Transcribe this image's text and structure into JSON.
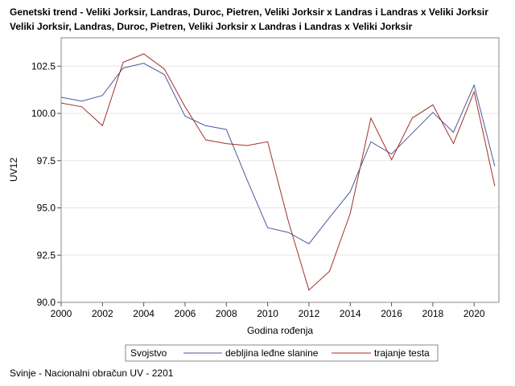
{
  "title_lines": [
    "Genetski trend - Veliki Jorksir, Landras, Duroc, Pietren, Veliki Jorksir x Landras i Landras x Veliki Jorksir",
    "Veliki Jorksir, Landras, Duroc, Pietren, Veliki Jorksir x Landras i Landras x Veliki Jorksir"
  ],
  "footnote": "Svinje - Nacionalni obračun UV - 2201",
  "chart_data": {
    "type": "line",
    "xlabel": "Godina rođenja",
    "ylabel": "UV12",
    "xlim": [
      2000,
      2021.2
    ],
    "ylim": [
      90.0,
      104.0
    ],
    "x_ticks": [
      "2000",
      "2002",
      "2004",
      "2006",
      "2008",
      "2010",
      "2012",
      "2014",
      "2016",
      "2018",
      "2020"
    ],
    "y_ticks": [
      "90.0",
      "92.5",
      "95.0",
      "97.5",
      "100.0",
      "102.5"
    ],
    "grid": true,
    "legend_title": "Svojstvo",
    "legend_position": "bottom",
    "x": [
      2000,
      2001,
      2002,
      2003,
      2004,
      2005,
      2006,
      2007,
      2008,
      2009,
      2010,
      2011,
      2012,
      2013,
      2014,
      2015,
      2016,
      2017,
      2018,
      2019,
      2020,
      2021
    ],
    "series": [
      {
        "name": "debljina leđne slanine",
        "color": "#4a5a9c",
        "values": [
          100.85,
          100.65,
          100.95,
          102.4,
          102.65,
          102.05,
          99.85,
          99.35,
          99.15,
          96.5,
          93.95,
          93.7,
          93.1,
          94.5,
          95.85,
          98.5,
          97.85,
          98.95,
          100.05,
          99.0,
          101.5,
          97.2
        ]
      },
      {
        "name": "trajanje testa",
        "color": "#a0302a",
        "values": [
          100.55,
          100.35,
          99.35,
          102.7,
          103.15,
          102.35,
          100.35,
          98.6,
          98.4,
          98.3,
          98.5,
          94.3,
          90.65,
          91.65,
          94.7,
          99.75,
          97.55,
          99.75,
          100.45,
          98.4,
          101.15,
          96.15
        ]
      }
    ]
  }
}
